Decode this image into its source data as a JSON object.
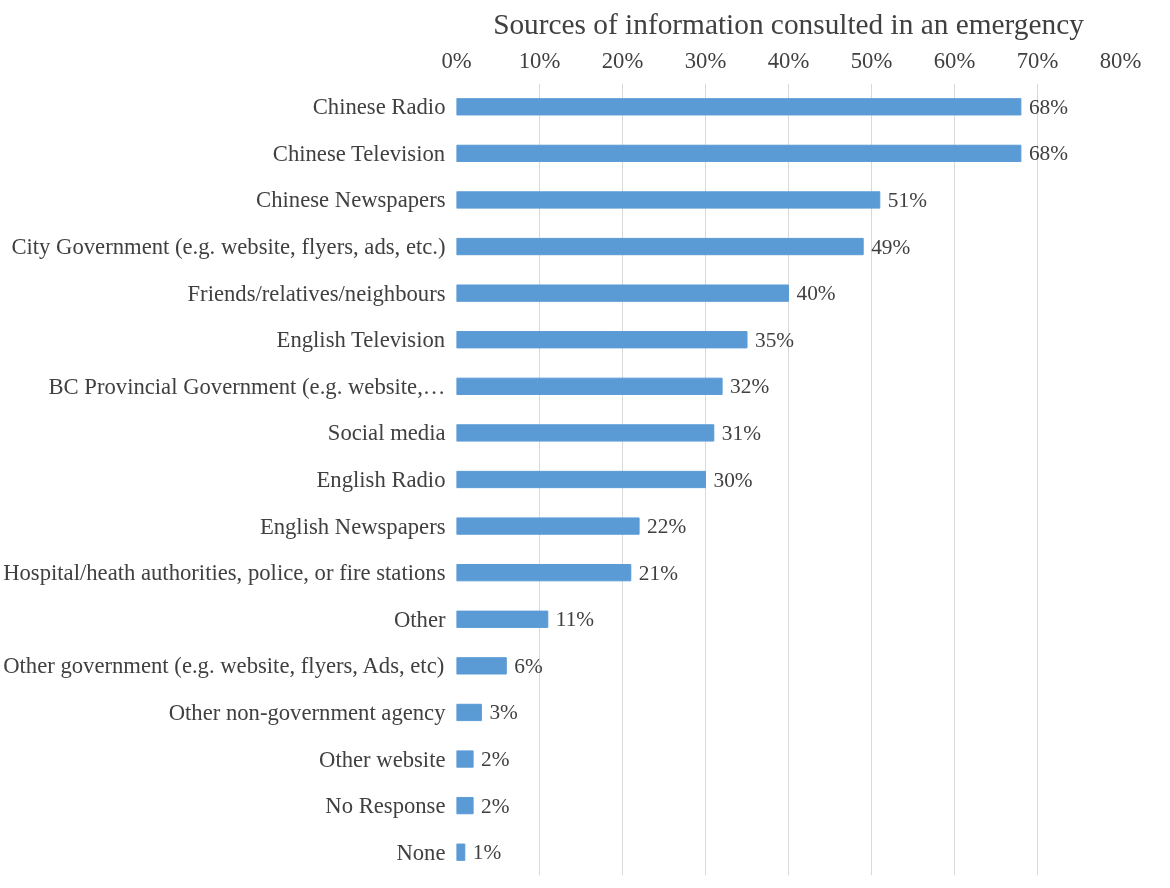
{
  "chart_data": {
    "type": "bar",
    "orientation": "horizontal",
    "title": "Sources of information consulted in an emergency",
    "categories": [
      "Chinese Radio",
      "Chinese Television",
      "Chinese Newspapers",
      "City Government (e.g. website, flyers, ads, etc.)",
      "Friends/relatives/neighbours",
      "English Television",
      "BC Provincial Government (e.g. website,…",
      "Social media",
      "English Radio",
      "English Newspapers",
      "Hospital/heath authorities, police, or fire stations",
      "Other",
      "Other government (e.g. website, flyers, Ads, etc)",
      "Other non-government agency",
      "Other website",
      "No Response",
      "None"
    ],
    "values": [
      68,
      68,
      51,
      49,
      40,
      35,
      32,
      31,
      30,
      22,
      21,
      11,
      6,
      3,
      2,
      2,
      1
    ],
    "value_labels": [
      "68%",
      "68%",
      "51%",
      "49%",
      "40%",
      "35%",
      "32%",
      "31%",
      "30%",
      "22%",
      "21%",
      "11%",
      "6%",
      "3%",
      "2%",
      "2%",
      "1%"
    ],
    "color": "#5b9bd5",
    "xlim": [
      0,
      80
    ],
    "xticks": [
      {
        "value": 0,
        "label": "0%"
      },
      {
        "value": 10,
        "label": "10%"
      },
      {
        "value": 20,
        "label": "20%"
      },
      {
        "value": 30,
        "label": "30%"
      },
      {
        "value": 40,
        "label": "40%"
      },
      {
        "value": 50,
        "label": "50%"
      },
      {
        "value": 60,
        "label": "60%"
      },
      {
        "value": 70,
        "label": "70%"
      },
      {
        "value": 80,
        "label": "80%"
      }
    ],
    "grid": "x"
  }
}
